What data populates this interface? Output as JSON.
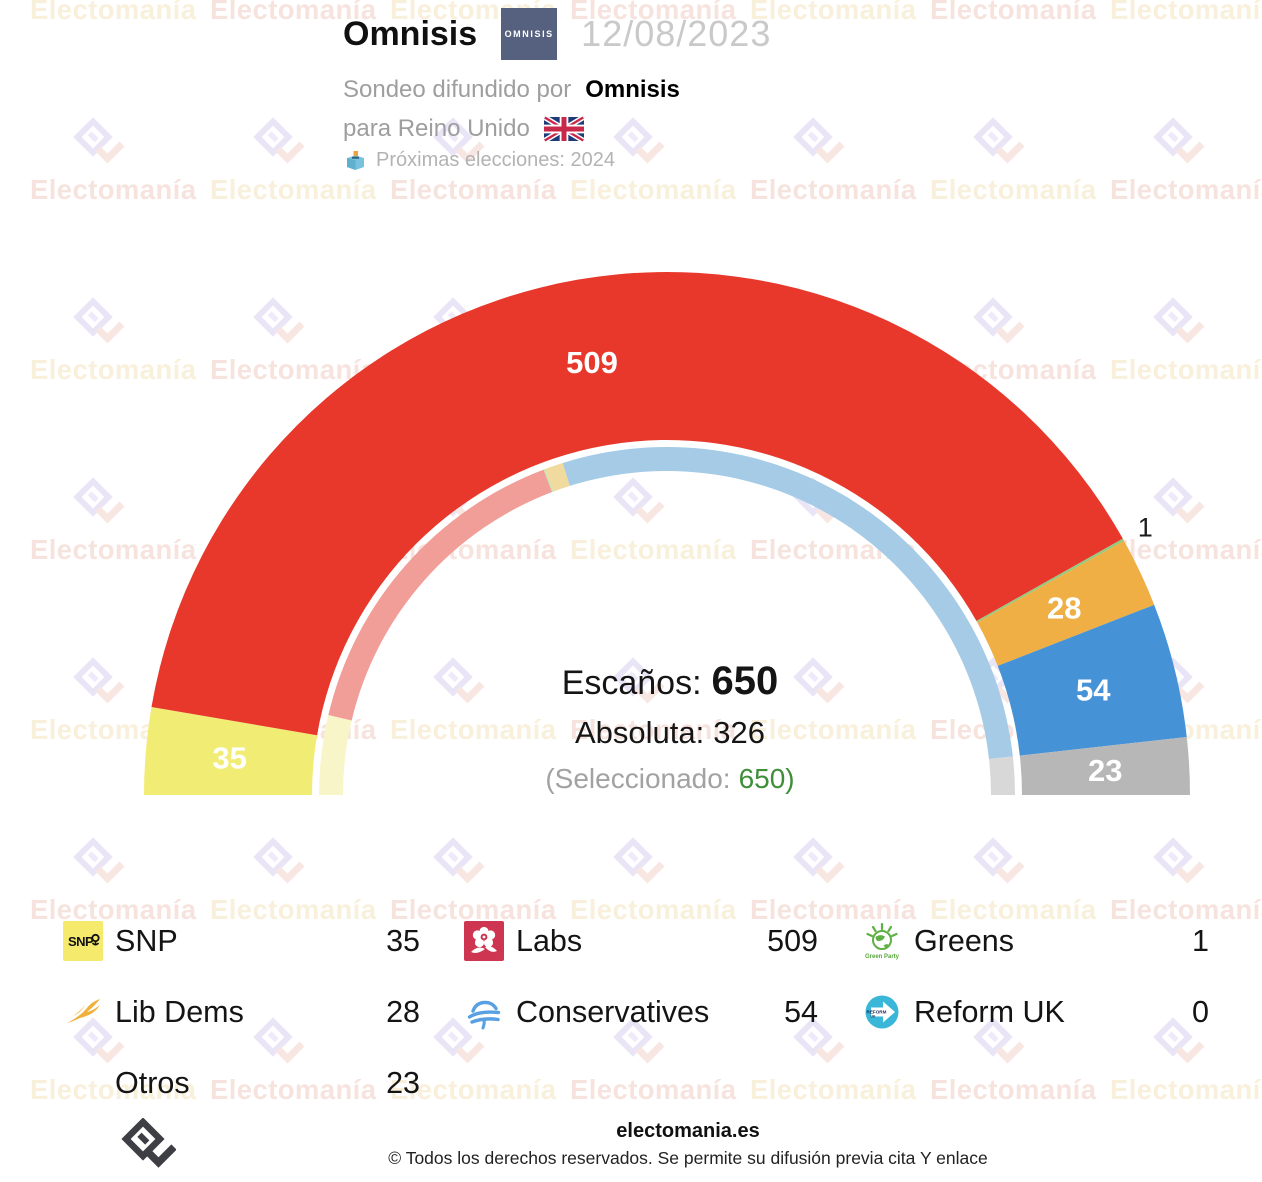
{
  "header": {
    "pollster": "Omnisis",
    "logo_text": "OMNISIS",
    "date": "12/08/2023",
    "source_prefix": "Sondeo difundido por",
    "source_name": "Omnisis",
    "region_line": "para Reino Unido",
    "next_election_line": "Próximas elecciones: 2024"
  },
  "center": {
    "seats_label": "Escaños:",
    "seats_total": "650",
    "majority_label": "Absoluta:",
    "majority_value": "326",
    "selected_prefix": "(Seleccionado:",
    "selected_value": "650)"
  },
  "chart_data": {
    "type": "hemicycle",
    "total_seats": 650,
    "majority": 326,
    "selected": 650,
    "series": [
      {
        "name": "SNP",
        "seats": 35,
        "color": "#F1EC74",
        "label": "35"
      },
      {
        "name": "Labs",
        "seats": 509,
        "color": "#E8382B",
        "label": "509"
      },
      {
        "name": "Greens",
        "seats": 1,
        "color": "#95C97E",
        "label": "1",
        "label_outside": true
      },
      {
        "name": "Lib Dems",
        "seats": 28,
        "color": "#F0AF44",
        "label": "28"
      },
      {
        "name": "Conservatives",
        "seats": 54,
        "color": "#4592D7",
        "label": "54"
      },
      {
        "name": "Otros",
        "seats": 23,
        "color": "#B7B7B7",
        "label": "23"
      }
    ],
    "inner_ring_previous_estimated": [
      {
        "name": "SNP",
        "seats": 48,
        "color": "#F8F6C9"
      },
      {
        "name": "Labs",
        "seats": 202,
        "color": "#F19E98"
      },
      {
        "name": "Greens",
        "seats": 1,
        "color": "#CBE4B4"
      },
      {
        "name": "Lib Dems",
        "seats": 11,
        "color": "#F0DA9E"
      },
      {
        "name": "Conservatives",
        "seats": 365,
        "color": "#A5CBE7"
      },
      {
        "name": "Otros",
        "seats": 23,
        "color": "#D8D8D8"
      }
    ]
  },
  "legend": {
    "items": [
      {
        "label": "SNP",
        "value": "35",
        "icon": "snp"
      },
      {
        "label": "Labs",
        "value": "509",
        "icon": "labour-rose"
      },
      {
        "label": "Greens",
        "value": "1",
        "icon": "green-party"
      },
      {
        "label": "Lib Dems",
        "value": "28",
        "icon": "libdem-bird"
      },
      {
        "label": "Conservatives",
        "value": "54",
        "icon": "conservative-tree"
      },
      {
        "label": "Reform UK",
        "value": "0",
        "icon": "reform-uk"
      },
      {
        "label": "Otros",
        "value": "23",
        "icon": null
      }
    ]
  },
  "footer": {
    "site": "electomania.es",
    "copyright": "© Todos los derechos reservados. Se permite su difusión previa cita Y enlace"
  },
  "watermark": {
    "text": "Electomanía"
  }
}
